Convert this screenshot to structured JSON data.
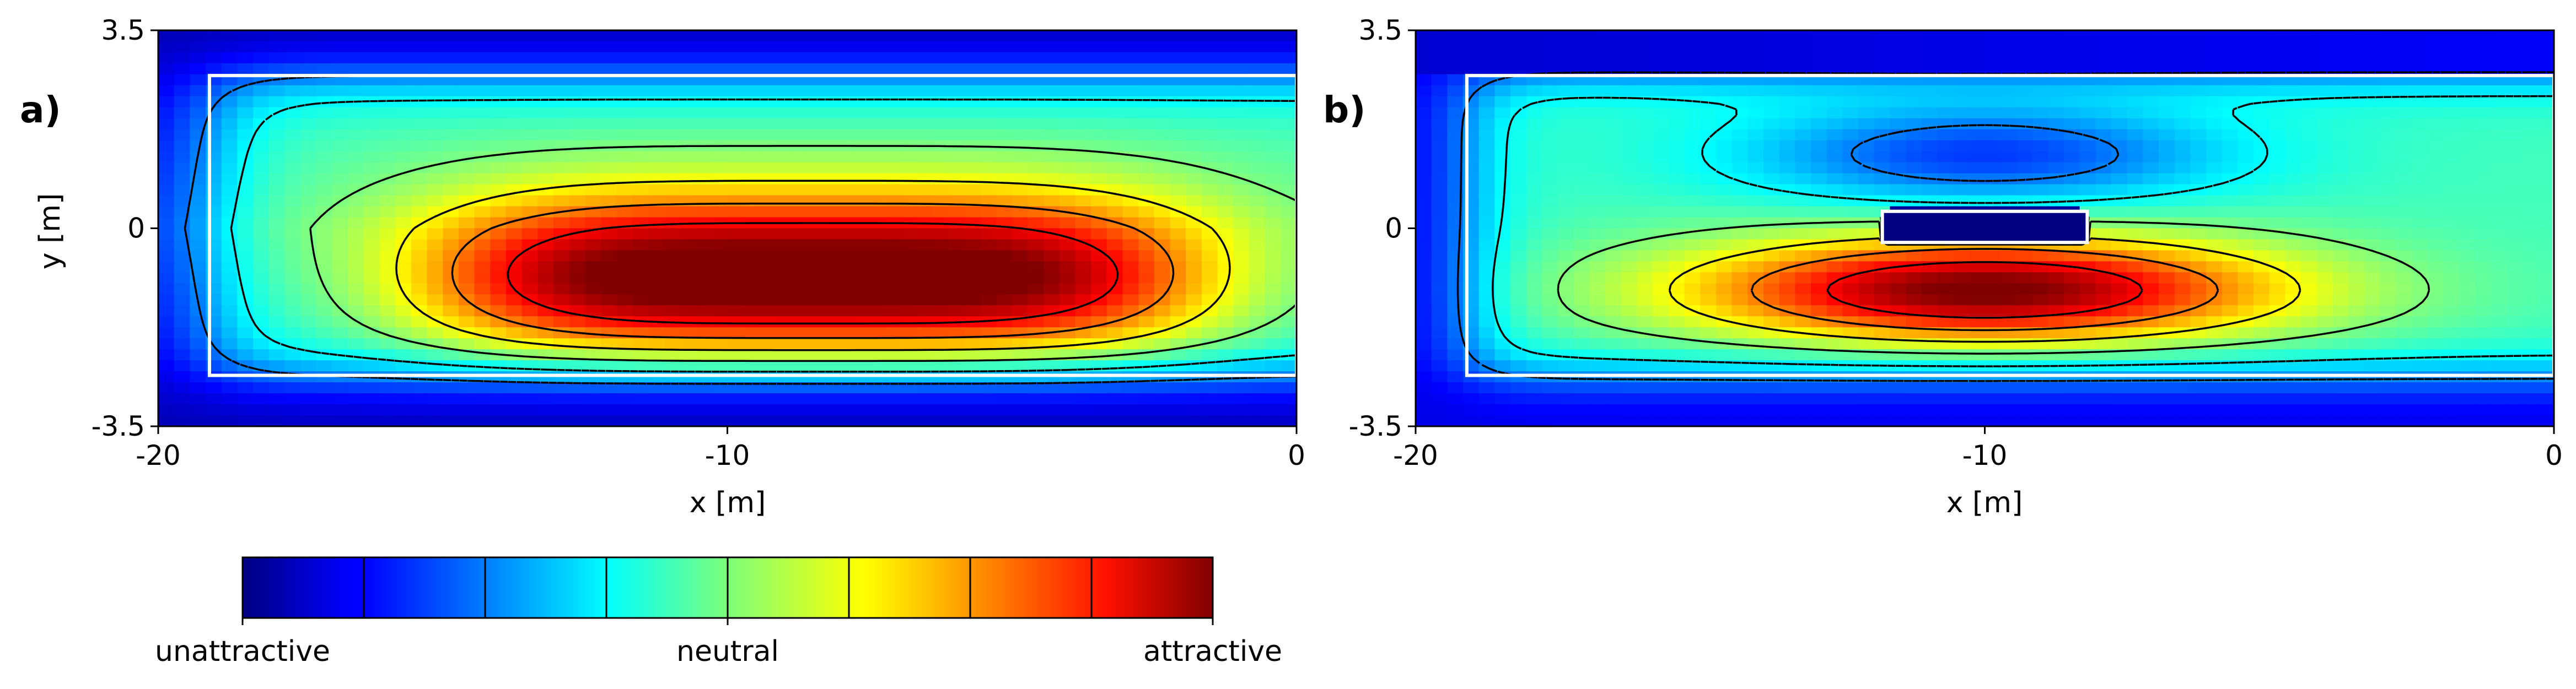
{
  "chart_data": [
    {
      "type": "heatmap",
      "panel_label": "a)",
      "xlabel": "x [m]",
      "ylabel": "y [m]",
      "xlim": [
        -20,
        0
      ],
      "ylim": [
        -3.5,
        3.5
      ],
      "x_ticks": [
        -20,
        -10,
        0
      ],
      "x_tick_labels": [
        "-20",
        "-10",
        "0"
      ],
      "y_ticks": [
        3.5,
        0,
        -3.5
      ],
      "y_tick_labels": [
        "3.5",
        "0",
        "-3.5"
      ],
      "colormap": "jet",
      "field": {
        "description_of_values": "attractiveness, 0 = unattractive, 0.5 = neutral, 1 = attractive",
        "peak": {
          "x": -8.5,
          "y": -0.9,
          "value": 0.98
        },
        "boundary_rect": {
          "x0": -19.1,
          "x1": 0,
          "y0": -2.6,
          "y1": 2.7
        }
      },
      "contour_levels": [
        0.25,
        0.375,
        0.5,
        0.625,
        0.75,
        0.875
      ],
      "negative_levels_dashed": true,
      "boundary_color": "#ffffff",
      "grid": false
    },
    {
      "type": "heatmap",
      "panel_label": "b)",
      "xlabel": "x [m]",
      "ylabel": "",
      "xlim": [
        -20,
        0
      ],
      "ylim": [
        -3.5,
        3.5
      ],
      "x_ticks": [
        -20,
        -10,
        0
      ],
      "x_tick_labels": [
        "-20",
        "-10",
        "0"
      ],
      "y_ticks": [
        3.5,
        0,
        -3.5
      ],
      "y_tick_labels": [
        "3.5",
        "0",
        "-3.5"
      ],
      "colormap": "jet",
      "field": {
        "peak": {
          "x": -10,
          "y": -1.1,
          "value": 0.95
        },
        "obstacle_rect": {
          "x0": -11.8,
          "x1": -8.2,
          "y0": -0.25,
          "y1": 0.3
        },
        "boundary_rect": {
          "x0": -19.1,
          "x1": 0,
          "y0": -2.6,
          "y1": 2.7
        }
      },
      "contour_levels": [
        0.25,
        0.375,
        0.5,
        0.625,
        0.75,
        0.875
      ],
      "negative_levels_dashed": true,
      "boundary_color": "#ffffff",
      "grid": false
    }
  ],
  "colorbar": {
    "n_levels": 8,
    "label_left": "unattractive",
    "label_center": "neutral",
    "label_right": "attractive"
  }
}
